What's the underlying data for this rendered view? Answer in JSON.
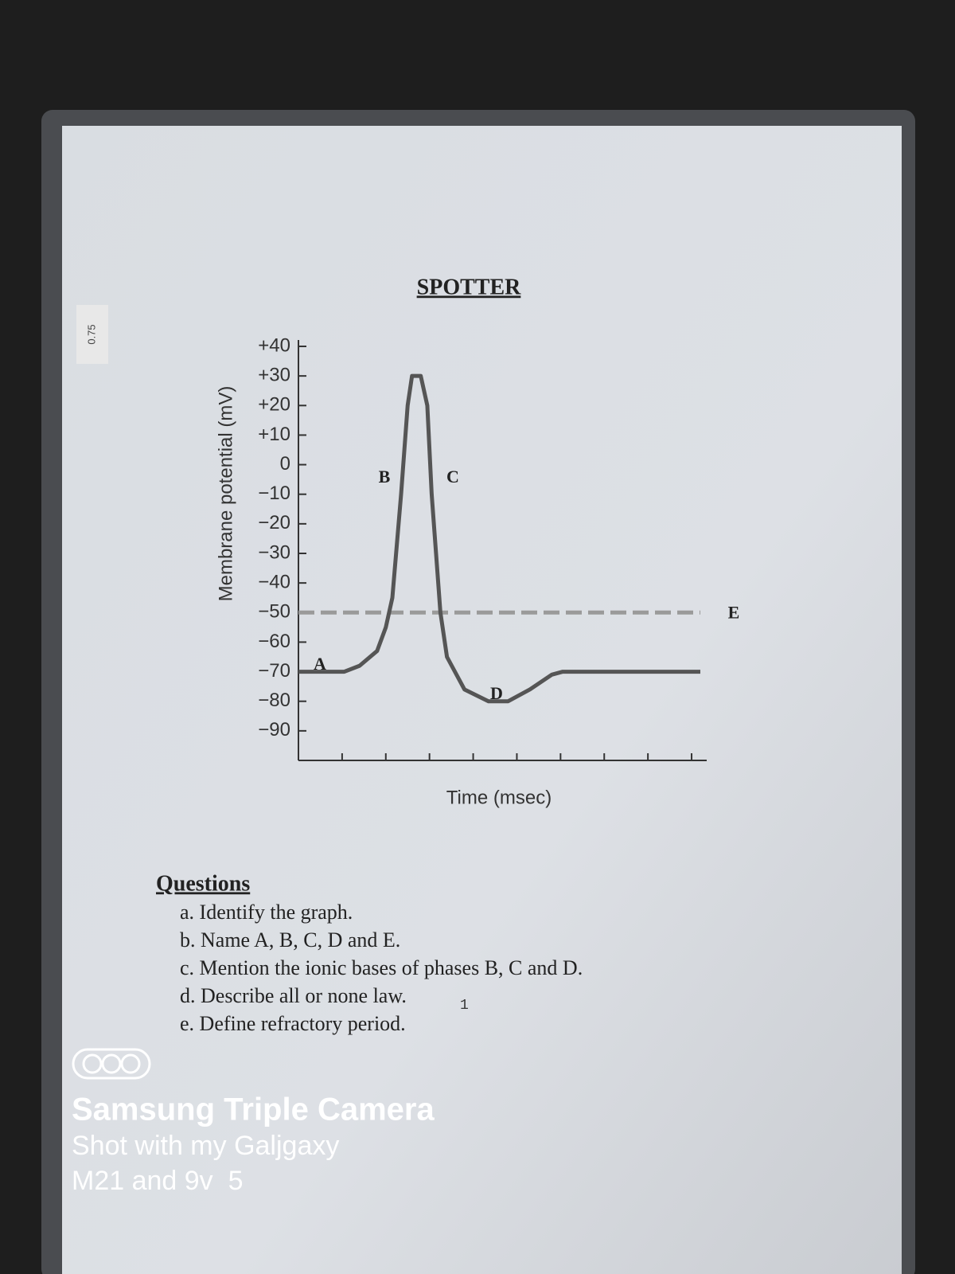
{
  "sticker": "0.75",
  "title": "SPOTTER",
  "chart_data": {
    "type": "line",
    "y_label": "Membrane potential (mV)",
    "x_label": "Time (msec)",
    "x": [
      0,
      1.05,
      1.4,
      1.8,
      2.0,
      2.15,
      2.35,
      2.5,
      2.6,
      2.8,
      2.95,
      3.05,
      3.25,
      3.4,
      3.8,
      4.35,
      4.8,
      5.3,
      5.8,
      6.05,
      9.2
    ],
    "values": [
      -70,
      -70,
      -68,
      -63,
      -55,
      -45,
      -10,
      20,
      30,
      30,
      20,
      -10,
      -50,
      -65,
      -76,
      -80,
      -80,
      -76,
      -71,
      -70,
      -70
    ],
    "color": "#555555",
    "xlim": [
      0,
      9.2
    ],
    "xticks": [
      1,
      2,
      3,
      4,
      5,
      6,
      7,
      8,
      9
    ],
    "ylim": [
      -100,
      40
    ],
    "yticks": [
      {
        "value": 40,
        "label": "+40"
      },
      {
        "value": 30,
        "label": "+30"
      },
      {
        "value": 20,
        "label": "+20"
      },
      {
        "value": 10,
        "label": "+10"
      },
      0,
      {
        "value": -10,
        "label": "−10"
      },
      {
        "value": -20,
        "label": "−20"
      },
      {
        "value": -30,
        "label": "−30"
      },
      {
        "value": -40,
        "label": "−40"
      },
      {
        "value": -50,
        "label": "−50"
      },
      {
        "value": -60,
        "label": "−60"
      },
      {
        "value": -70,
        "label": "−70"
      },
      {
        "value": -80,
        "label": "−80"
      },
      {
        "value": -90,
        "label": "−90"
      }
    ],
    "reference_line": {
      "value": -50,
      "label": "E",
      "color": "#9a9a9a"
    },
    "annotations": [
      "A",
      "B",
      "C",
      "D"
    ]
  },
  "questions": {
    "heading": "Questions",
    "items": [
      "a. Identify the graph.",
      "b. Name A, B, C, D and E.",
      "c. Mention the ionic bases of phases B, C and D.",
      "d. Describe all or none law.",
      "e. Define refractory period."
    ],
    "handwritten_mark": "1"
  },
  "watermark": [
    "Samsung Triple Camera",
    "Shot with my Galjgaxy",
    "M21 and 9v  5"
  ]
}
